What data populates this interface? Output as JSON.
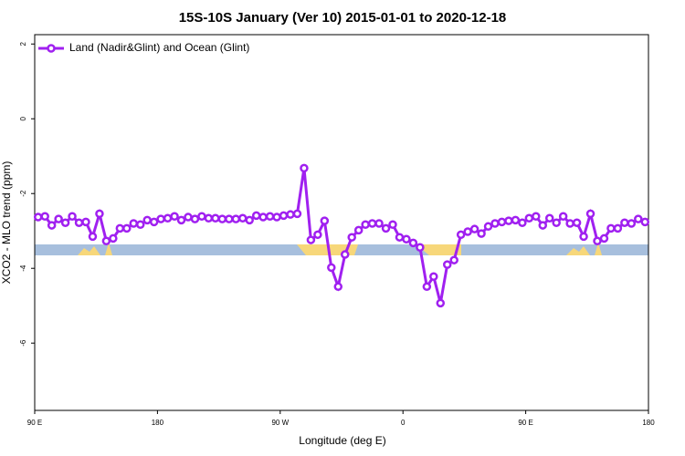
{
  "chart_data": {
    "type": "line",
    "title": "15S-10S January (Ver 10)   2015-01-01 to 2020-12-18",
    "x_label": "Longitude (deg E)",
    "y_label": "XCO2 - MLO trend (ppm)",
    "xlim": [
      90,
      540
    ],
    "xticks": [
      {
        "value": 90,
        "label": "90 E"
      },
      180,
      {
        "value": 270,
        "label": "90 W"
      },
      {
        "value": 360,
        "label": "0"
      },
      {
        "value": 450,
        "label": "90 E"
      },
      {
        "value": 540,
        "label": "180"
      }
    ],
    "ylim": [
      -7.8,
      2.25
    ],
    "yticks": [
      2,
      0,
      -2,
      -4,
      -6
    ],
    "legend": "top-left",
    "x": [
      92.5,
      97.5,
      102.5,
      107.5,
      112.5,
      117.5,
      122.5,
      127.5,
      132.5,
      137.5,
      142.5,
      147.5,
      152.5,
      157.5,
      162.5,
      167.5,
      172.5,
      177.5,
      182.5,
      187.5,
      192.5,
      197.5,
      202.5,
      207.5,
      212.5,
      217.5,
      222.5,
      227.5,
      232.5,
      237.5,
      242.5,
      247.5,
      252.5,
      257.5,
      262.5,
      267.5,
      272.5,
      277.5,
      282.5,
      287.5,
      292.5,
      297.5,
      302.5,
      307.5,
      312.5,
      317.5,
      322.5,
      327.5,
      332.5,
      337.5,
      342.5,
      347.5,
      352.5,
      357.5,
      362.5,
      367.5,
      372.5,
      377.5,
      382.5,
      387.5,
      392.5,
      397.5,
      402.5,
      407.5,
      412.5,
      417.5,
      422.5,
      427.5,
      432.5,
      437.5,
      442.5,
      447.5,
      452.5,
      457.5,
      462.5,
      467.5,
      472.5,
      477.5,
      482.5,
      487.5,
      492.5,
      497.5,
      502.5,
      507.5,
      512.5,
      517.5,
      522.5,
      527.5,
      532.5,
      537.5
    ],
    "series": [
      {
        "name": "Land (Nadir&Glint) and Ocean (Glint)",
        "color": "#a020f0",
        "values": [
          -2.63,
          -2.61,
          -2.85,
          -2.68,
          -2.78,
          -2.61,
          -2.78,
          -2.76,
          -3.15,
          -2.54,
          -3.27,
          -3.2,
          -2.93,
          -2.93,
          -2.8,
          -2.83,
          -2.71,
          -2.76,
          -2.68,
          -2.66,
          -2.61,
          -2.71,
          -2.63,
          -2.68,
          -2.61,
          -2.66,
          -2.66,
          -2.68,
          -2.68,
          -2.68,
          -2.66,
          -2.71,
          -2.59,
          -2.63,
          -2.61,
          -2.63,
          -2.59,
          -2.56,
          -2.54,
          -1.32,
          -3.24,
          -3.1,
          -2.73,
          -3.98,
          -4.49,
          -3.63,
          -3.17,
          -2.98,
          -2.83,
          -2.8,
          -2.8,
          -2.93,
          -2.83,
          -3.17,
          -3.22,
          -3.32,
          -3.44,
          -4.49,
          -4.22,
          -4.93,
          -3.9,
          -3.78,
          -3.1,
          -3.02,
          -2.95,
          -3.07,
          -2.88,
          -2.8,
          -2.76,
          -2.73,
          -2.71,
          -2.78,
          -2.66,
          -2.61,
          -2.85,
          -2.66,
          -2.78,
          -2.61,
          -2.8,
          -2.78,
          -3.15,
          -2.54,
          -3.27,
          -3.2,
          -2.93,
          -2.93,
          -2.78,
          -2.8,
          -2.68,
          -2.76
        ]
      }
    ]
  }
}
